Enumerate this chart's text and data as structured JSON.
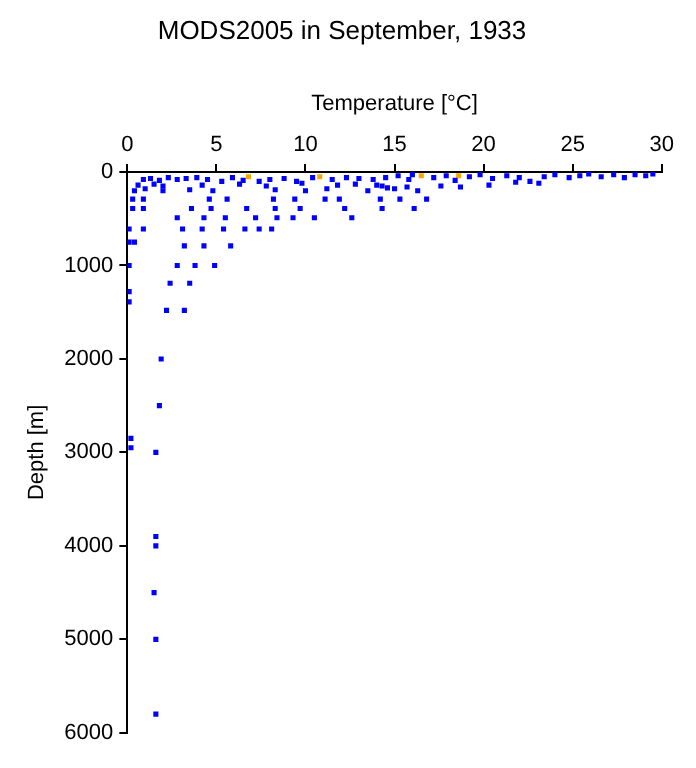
{
  "chart_data": {
    "type": "scatter",
    "title": "MODS2005 in September, 1933",
    "xlabel": "Temperature [°C]",
    "ylabel": "Depth [m]",
    "xlim": [
      0,
      30
    ],
    "xticks": [
      0,
      5,
      10,
      15,
      20,
      25,
      30
    ],
    "ylim": [
      6000,
      0
    ],
    "yticks": [
      0,
      1000,
      2000,
      3000,
      4000,
      5000,
      6000
    ],
    "grid": false,
    "legend": false,
    "marker": "square",
    "series": [
      {
        "color": "#0000ff",
        "x": [
          0.9,
          1.3,
          1.8,
          2.3,
          2.8,
          3.3,
          3.9,
          4.5,
          5.3,
          5.9,
          6.5,
          7.4,
          8,
          8.8,
          9.5,
          10.4,
          11.5,
          12.3,
          13,
          13.8,
          14.5,
          0.6,
          1.5,
          2,
          4.2,
          6.3,
          7.8,
          9.8,
          11.8,
          12.8,
          14,
          0.4,
          1,
          2,
          3.5,
          4.8,
          8.3,
          10,
          11.2,
          13.5,
          14.6,
          0.3,
          0.9,
          4.6,
          5.6,
          8.2,
          9.4,
          11.1,
          11.9,
          0.3,
          0.9,
          3.6,
          4.7,
          6.7,
          8.3,
          9.7,
          12.2,
          2.8,
          4.3,
          5.5,
          7.2,
          8.4,
          9.3,
          10.5,
          12.6,
          0.1,
          0.9,
          3.1,
          4.2,
          5.4,
          6.6,
          7.4,
          8.1,
          0.1,
          0.4,
          3.2,
          4.3,
          5.8,
          0.1,
          2.8,
          3.8,
          4.9,
          2.4,
          3.5,
          0.1,
          0.1,
          2.2,
          3.2,
          1.9,
          1.8,
          0.2,
          0.2,
          1.6,
          1.6,
          1.6,
          1.5,
          1.6,
          1.6,
          15.2,
          15.8,
          16.0,
          17.2,
          17.9,
          18.4,
          19.2,
          19.8,
          20.5,
          21.3,
          22,
          22.6,
          23.4,
          24,
          24.8,
          25.4,
          25.9,
          26.6,
          27.3,
          27.9,
          28.5,
          29.1,
          29.5,
          21.8,
          23.1,
          14.3,
          15,
          15.7,
          16.3,
          17.6,
          18.7,
          20.3,
          14.2,
          15.3,
          16.8,
          14.3,
          16.1
        ],
        "values": [
          80,
          70,
          90,
          60,
          80,
          70,
          60,
          80,
          100,
          60,
          90,
          100,
          80,
          70,
          100,
          60,
          80,
          60,
          70,
          80,
          60,
          140,
          130,
          150,
          140,
          130,
          150,
          120,
          140,
          130,
          140,
          200,
          180,
          200,
          190,
          200,
          190,
          200,
          180,
          200,
          170,
          290,
          290,
          290,
          290,
          290,
          290,
          290,
          290,
          390,
          390,
          390,
          390,
          390,
          390,
          390,
          390,
          490,
          490,
          490,
          490,
          490,
          490,
          490,
          490,
          610,
          610,
          610,
          610,
          610,
          610,
          610,
          610,
          750,
          750,
          790,
          790,
          790,
          1000,
          1000,
          1000,
          1000,
          1190,
          1190,
          1280,
          1390,
          1480,
          1480,
          2000,
          2500,
          2850,
          2950,
          3000,
          3900,
          4000,
          4500,
          5000,
          5800,
          40,
          80,
          30,
          60,
          40,
          90,
          50,
          30,
          70,
          40,
          60,
          100,
          50,
          30,
          60,
          40,
          20,
          50,
          30,
          60,
          30,
          40,
          20,
          110,
          120,
          150,
          180,
          160,
          200,
          150,
          160,
          140,
          290,
          290,
          290,
          390,
          390
        ]
      },
      {
        "color": "#ffa500",
        "x": [
          6.8,
          10.8,
          16.5,
          18.6
        ],
        "values": [
          50,
          50,
          40,
          40
        ]
      }
    ]
  }
}
